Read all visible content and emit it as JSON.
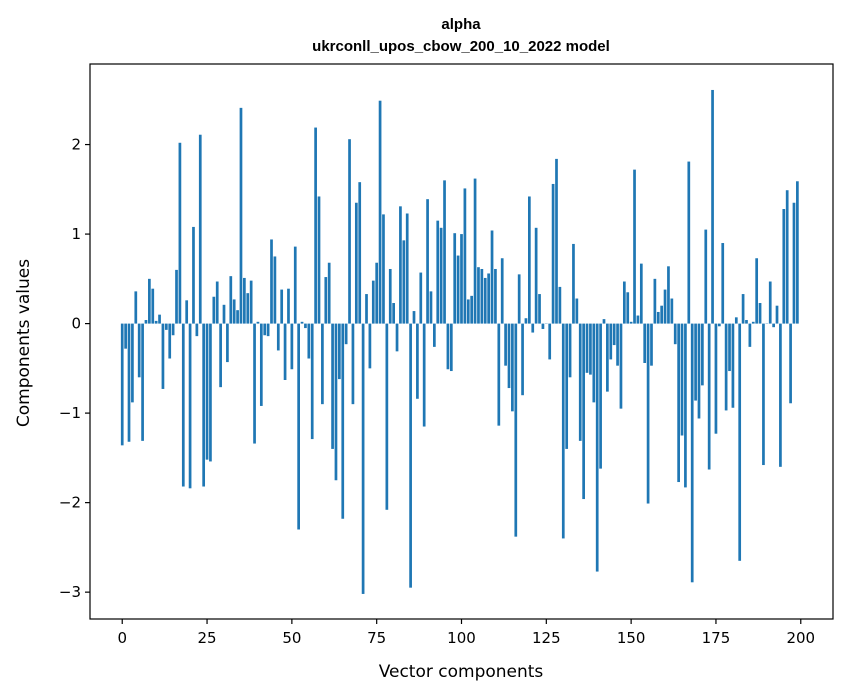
{
  "chart_data": {
    "type": "bar",
    "title": "alpha",
    "subtitle": "ukrconll_upos_cbow_200_10_2022 model",
    "xlabel": "Vector components",
    "ylabel": "Components values",
    "xlim": [
      -9.5,
      209.5
    ],
    "ylim": [
      -3.3,
      2.9
    ],
    "xticks": [
      0,
      25,
      50,
      75,
      100,
      125,
      150,
      175,
      200
    ],
    "yticks": [
      -3,
      -2,
      -1,
      0,
      1,
      2
    ],
    "xtick_labels": [
      "0",
      "25",
      "50",
      "75",
      "100",
      "125",
      "150",
      "175",
      "200"
    ],
    "ytick_labels": [
      "−3",
      "−2",
      "−1",
      "0",
      "1",
      "2"
    ],
    "bar_color": "#1f77b4",
    "grid": false,
    "x": [
      0,
      1,
      2,
      3,
      4,
      5,
      6,
      7,
      8,
      9,
      10,
      11,
      12,
      13,
      14,
      15,
      16,
      17,
      18,
      19,
      20,
      21,
      22,
      23,
      24,
      25,
      26,
      27,
      28,
      29,
      30,
      31,
      32,
      33,
      34,
      35,
      36,
      37,
      38,
      39,
      40,
      41,
      42,
      43,
      44,
      45,
      46,
      47,
      48,
      49,
      50,
      51,
      52,
      53,
      54,
      55,
      56,
      57,
      58,
      59,
      60,
      61,
      62,
      63,
      64,
      65,
      66,
      67,
      68,
      69,
      70,
      71,
      72,
      73,
      74,
      75,
      76,
      77,
      78,
      79,
      80,
      81,
      82,
      83,
      84,
      85,
      86,
      87,
      88,
      89,
      90,
      91,
      92,
      93,
      94,
      95,
      96,
      97,
      98,
      99,
      100,
      101,
      102,
      103,
      104,
      105,
      106,
      107,
      108,
      109,
      110,
      111,
      112,
      113,
      114,
      115,
      116,
      117,
      118,
      119,
      120,
      121,
      122,
      123,
      124,
      125,
      126,
      127,
      128,
      129,
      130,
      131,
      132,
      133,
      134,
      135,
      136,
      137,
      138,
      139,
      140,
      141,
      142,
      143,
      144,
      145,
      146,
      147,
      148,
      149,
      150,
      151,
      152,
      153,
      154,
      155,
      156,
      157,
      158,
      159,
      160,
      161,
      162,
      163,
      164,
      165,
      166,
      167,
      168,
      169,
      170,
      171,
      172,
      173,
      174,
      175,
      176,
      177,
      178,
      179,
      180,
      181,
      182,
      183,
      184,
      185,
      186,
      187,
      188,
      189,
      190,
      191,
      192,
      193,
      194,
      195,
      196,
      197,
      198,
      199
    ],
    "values": [
      -1.36,
      -0.28,
      -1.32,
      -0.88,
      0.36,
      -0.6,
      -1.31,
      0.04,
      0.5,
      0.39,
      0.03,
      0.1,
      -0.73,
      -0.07,
      -0.39,
      -0.13,
      0.6,
      2.02,
      -1.82,
      0.26,
      -1.84,
      1.08,
      -0.14,
      2.11,
      -1.82,
      -1.52,
      -1.54,
      0.3,
      0.47,
      -0.71,
      0.21,
      -0.43,
      0.53,
      0.27,
      0.15,
      2.41,
      0.51,
      0.34,
      0.48,
      -1.34,
      0.02,
      -0.92,
      -0.13,
      -0.14,
      0.94,
      0.75,
      -0.3,
      0.38,
      -0.63,
      0.39,
      -0.51,
      0.86,
      -2.3,
      0.02,
      -0.05,
      -0.39,
      -1.29,
      2.19,
      1.42,
      -0.9,
      0.52,
      0.68,
      -1.4,
      -1.75,
      -0.62,
      -2.18,
      -0.23,
      2.06,
      -0.9,
      1.35,
      1.58,
      -3.02,
      0.33,
      -0.5,
      0.48,
      0.68,
      2.49,
      1.22,
      -2.08,
      0.61,
      0.23,
      -0.31,
      1.31,
      0.93,
      1.23,
      -2.95,
      0.14,
      -0.84,
      0.57,
      -1.15,
      1.39,
      0.36,
      -0.26,
      1.15,
      1.07,
      1.6,
      -0.51,
      -0.53,
      1.01,
      0.76,
      1.0,
      1.51,
      0.27,
      0.31,
      1.62,
      0.63,
      0.61,
      0.51,
      0.56,
      1.04,
      0.61,
      -1.14,
      0.73,
      -0.47,
      -0.72,
      -0.98,
      -2.38,
      0.55,
      -0.8,
      0.06,
      1.42,
      -0.1,
      1.07,
      0.33,
      -0.06,
      0.0,
      -0.4,
      1.56,
      1.84,
      0.41,
      -2.4,
      -1.4,
      -0.6,
      0.89,
      0.28,
      -1.31,
      -1.96,
      -0.55,
      -0.57,
      -0.88,
      -2.77,
      -1.62,
      0.05,
      -0.76,
      -0.4,
      -0.24,
      -0.47,
      -0.95,
      0.47,
      0.35,
      0.02,
      1.72,
      0.09,
      0.67,
      -0.44,
      -2.01,
      -0.47,
      0.5,
      0.13,
      0.2,
      0.38,
      0.64,
      0.28,
      -0.23,
      -1.77,
      -1.25,
      -1.83,
      1.81,
      -2.89,
      -0.86,
      -1.06,
      -0.69,
      1.05,
      -1.63,
      2.61,
      -1.23,
      -0.03,
      0.9,
      -0.97,
      -0.53,
      -0.94,
      0.07,
      -2.65,
      0.33,
      0.04,
      -0.26,
      0.02,
      0.73,
      0.23,
      -1.58,
      0.0,
      0.47,
      -0.04,
      0.2,
      -1.6,
      1.28,
      1.49,
      -0.89,
      1.35,
      1.59
    ]
  }
}
